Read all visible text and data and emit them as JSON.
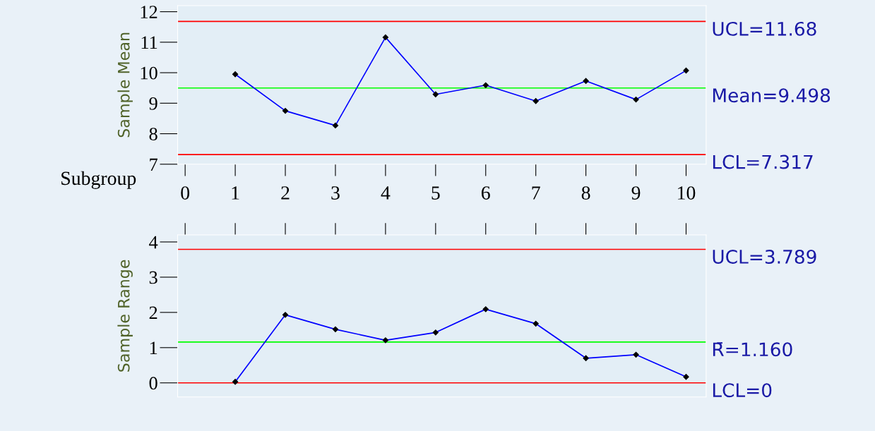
{
  "chart_data": [
    {
      "type": "line",
      "ylabel": "Sample Mean",
      "xlabel": "Subgroup",
      "x": [
        1,
        2,
        3,
        4,
        5,
        6,
        7,
        8,
        9,
        10
      ],
      "xlim": [
        -0.15,
        10.4
      ],
      "xticks": [
        0,
        1,
        2,
        3,
        4,
        5,
        6,
        7,
        8,
        9,
        10
      ],
      "ylim": [
        7,
        12.2
      ],
      "yticks": [
        7,
        8,
        9,
        10,
        11,
        12
      ],
      "marker": "diamond",
      "grid": false,
      "series": [
        {
          "color": "#0000ff",
          "values": [
            9.95,
            8.75,
            8.27,
            11.16,
            9.29,
            9.59,
            9.07,
            9.73,
            9.12,
            10.07
          ]
        }
      ],
      "ref_lines": [
        {
          "axis": "y",
          "value": 11.68,
          "label": "UCL=11.68",
          "color": "#ff0000"
        },
        {
          "axis": "y",
          "value": 9.498,
          "label": "Mean=9.498",
          "color": "#00ff00"
        },
        {
          "axis": "y",
          "value": 7.317,
          "label": "LCL=7.317",
          "color": "#ff0000"
        }
      ]
    },
    {
      "type": "line",
      "ylabel": "Sample Range",
      "x": [
        1,
        2,
        3,
        4,
        5,
        6,
        7,
        8,
        9,
        10
      ],
      "xlim": [
        -0.15,
        10.4
      ],
      "xticks": [
        0,
        1,
        2,
        3,
        4,
        5,
        6,
        7,
        8,
        9,
        10
      ],
      "ylim": [
        -0.4,
        4.2
      ],
      "yticks": [
        0,
        1,
        2,
        3,
        4
      ],
      "tick_labels": "y",
      "marker": "diamond",
      "grid": false,
      "series": [
        {
          "color": "#0000ff",
          "values": [
            0.03,
            1.93,
            1.52,
            1.21,
            1.43,
            2.09,
            1.68,
            0.7,
            0.8,
            0.17
          ]
        }
      ],
      "ref_lines": [
        {
          "axis": "y",
          "value": 3.789,
          "label": "UCL=3.789",
          "color": "#ff0000"
        },
        {
          "axis": "y",
          "value": 1.16,
          "label": "R̄=1.160",
          "color": "#00ff00"
        },
        {
          "axis": "y",
          "value": 0,
          "label": "LCL=0",
          "color": "#ff0000"
        }
      ]
    }
  ]
}
